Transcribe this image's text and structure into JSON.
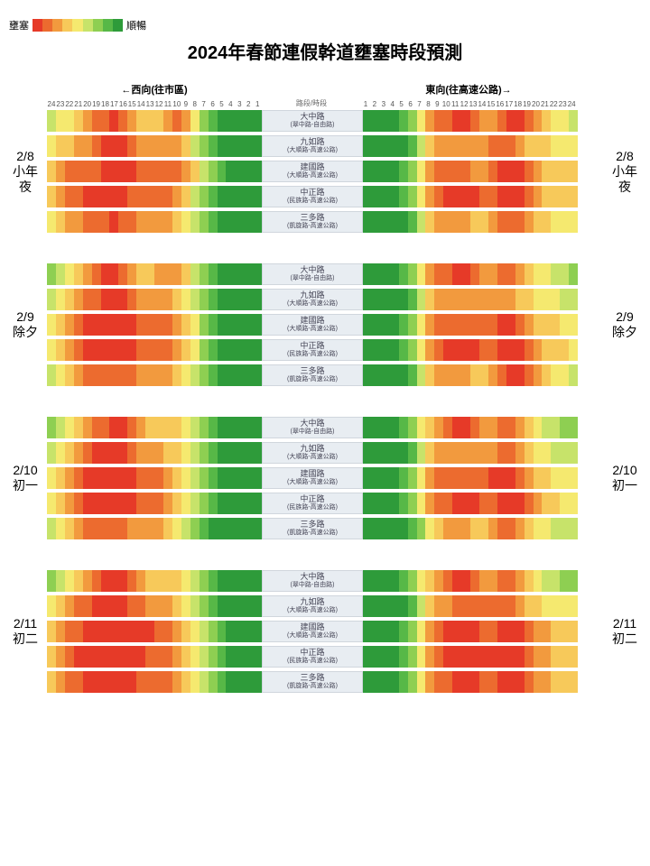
{
  "title": "2024年春節連假幹道壅塞時段預測",
  "legend": {
    "left": "壅塞",
    "right": "順暢"
  },
  "dir_left_label": "←西向(往市區)",
  "dir_right_label": "東向(往高速公路)→",
  "mid_header": "路段/時段",
  "hours_left": [
    "24",
    "23",
    "22",
    "21",
    "20",
    "19",
    "18",
    "17",
    "16",
    "15",
    "14",
    "13",
    "12",
    "11",
    "10",
    "9",
    "8",
    "7",
    "6",
    "5",
    "4",
    "3",
    "2",
    "1"
  ],
  "hours_right": [
    "1",
    "2",
    "3",
    "4",
    "5",
    "6",
    "7",
    "8",
    "9",
    "10",
    "11",
    "12",
    "13",
    "14",
    "15",
    "16",
    "17",
    "18",
    "19",
    "20",
    "21",
    "22",
    "23",
    "24"
  ],
  "colors": {
    "0": "#2e9b3a",
    "1": "#57b847",
    "2": "#8ecf52",
    "3": "#c7e36a",
    "4": "#f5e96f",
    "5": "#f7c95a",
    "6": "#f29a3e",
    "7": "#ec6b2f",
    "8": "#e63a28"
  },
  "legend_swatch": [
    "8",
    "7",
    "6",
    "5",
    "4",
    "3",
    "2",
    "1",
    "0"
  ],
  "roads": [
    {
      "name": "大中路",
      "seg": "(翠中路-自由路)"
    },
    {
      "name": "九如路",
      "seg": "(大順路-高速公路)"
    },
    {
      "name": "建國路",
      "seg": "(大順路-高速公路)"
    },
    {
      "name": "中正路",
      "seg": "(民族路-高速公路)"
    },
    {
      "name": "三多路",
      "seg": "(凱旋路-高速公路)"
    }
  ],
  "days": [
    {
      "date": "2/8",
      "name": "小年夜",
      "rows": [
        {
          "L": [
            3,
            4,
            4,
            5,
            6,
            7,
            7,
            8,
            7,
            6,
            5,
            5,
            5,
            6,
            7,
            6,
            4,
            2,
            1,
            0,
            0,
            0,
            0,
            0
          ],
          "R": [
            0,
            0,
            0,
            0,
            1,
            2,
            4,
            6,
            7,
            7,
            8,
            8,
            7,
            6,
            6,
            7,
            8,
            8,
            7,
            6,
            5,
            4,
            4,
            3
          ]
        },
        {
          "L": [
            4,
            5,
            5,
            6,
            6,
            7,
            8,
            8,
            8,
            7,
            6,
            6,
            6,
            6,
            6,
            5,
            3,
            2,
            1,
            0,
            0,
            0,
            0,
            0
          ],
          "R": [
            0,
            0,
            0,
            0,
            0,
            1,
            3,
            5,
            6,
            6,
            6,
            6,
            6,
            6,
            7,
            7,
            7,
            6,
            5,
            5,
            5,
            4,
            4,
            4
          ]
        },
        {
          "L": [
            5,
            6,
            7,
            7,
            7,
            7,
            8,
            8,
            8,
            8,
            7,
            7,
            7,
            7,
            7,
            6,
            5,
            3,
            2,
            1,
            0,
            0,
            0,
            0
          ],
          "R": [
            0,
            0,
            0,
            0,
            1,
            2,
            4,
            6,
            7,
            7,
            7,
            7,
            6,
            6,
            7,
            8,
            8,
            8,
            7,
            6,
            5,
            5,
            5,
            5
          ]
        },
        {
          "L": [
            5,
            6,
            7,
            7,
            8,
            8,
            8,
            8,
            8,
            7,
            7,
            7,
            7,
            7,
            6,
            5,
            3,
            2,
            1,
            0,
            0,
            0,
            0,
            0
          ],
          "R": [
            0,
            0,
            0,
            0,
            1,
            2,
            4,
            6,
            7,
            8,
            8,
            8,
            8,
            7,
            7,
            8,
            8,
            8,
            7,
            6,
            5,
            5,
            5,
            5
          ]
        },
        {
          "L": [
            4,
            5,
            6,
            6,
            7,
            7,
            7,
            8,
            7,
            7,
            6,
            6,
            6,
            6,
            5,
            4,
            3,
            2,
            1,
            0,
            0,
            0,
            0,
            0
          ],
          "R": [
            0,
            0,
            0,
            0,
            0,
            1,
            3,
            5,
            6,
            6,
            6,
            6,
            5,
            5,
            6,
            7,
            7,
            7,
            6,
            5,
            5,
            4,
            4,
            4
          ]
        }
      ]
    },
    {
      "date": "2/9",
      "name": "除夕",
      "rows": [
        {
          "L": [
            2,
            3,
            4,
            5,
            6,
            7,
            8,
            8,
            7,
            6,
            5,
            5,
            6,
            6,
            6,
            5,
            3,
            2,
            1,
            0,
            0,
            0,
            0,
            0
          ],
          "R": [
            0,
            0,
            0,
            0,
            1,
            2,
            4,
            6,
            7,
            7,
            8,
            8,
            7,
            6,
            6,
            7,
            7,
            6,
            5,
            4,
            4,
            3,
            3,
            2
          ]
        },
        {
          "L": [
            3,
            4,
            5,
            6,
            7,
            7,
            8,
            8,
            8,
            7,
            6,
            6,
            6,
            6,
            5,
            4,
            3,
            2,
            1,
            0,
            0,
            0,
            0,
            0
          ],
          "R": [
            0,
            0,
            0,
            0,
            0,
            1,
            3,
            5,
            6,
            6,
            6,
            6,
            6,
            6,
            6,
            6,
            6,
            5,
            5,
            4,
            4,
            4,
            3,
            3
          ]
        },
        {
          "L": [
            4,
            5,
            6,
            7,
            8,
            8,
            8,
            8,
            8,
            8,
            7,
            7,
            7,
            7,
            6,
            5,
            4,
            2,
            1,
            0,
            0,
            0,
            0,
            0
          ],
          "R": [
            0,
            0,
            0,
            0,
            1,
            2,
            4,
            6,
            7,
            7,
            7,
            7,
            7,
            7,
            7,
            8,
            8,
            7,
            6,
            5,
            5,
            5,
            4,
            4
          ]
        },
        {
          "L": [
            4,
            5,
            6,
            7,
            8,
            8,
            8,
            8,
            8,
            8,
            7,
            7,
            7,
            7,
            6,
            5,
            4,
            2,
            1,
            0,
            0,
            0,
            0,
            0
          ],
          "R": [
            0,
            0,
            0,
            0,
            1,
            2,
            4,
            6,
            7,
            8,
            8,
            8,
            8,
            7,
            7,
            8,
            8,
            8,
            7,
            6,
            5,
            5,
            5,
            4
          ]
        },
        {
          "L": [
            3,
            4,
            5,
            6,
            7,
            7,
            7,
            7,
            7,
            7,
            6,
            6,
            6,
            6,
            5,
            4,
            3,
            2,
            1,
            0,
            0,
            0,
            0,
            0
          ],
          "R": [
            0,
            0,
            0,
            0,
            0,
            1,
            3,
            5,
            6,
            6,
            6,
            6,
            5,
            5,
            6,
            7,
            8,
            8,
            7,
            6,
            5,
            4,
            4,
            3
          ]
        }
      ]
    },
    {
      "date": "2/10",
      "name": "初一",
      "rows": [
        {
          "L": [
            2,
            3,
            4,
            5,
            6,
            7,
            7,
            8,
            8,
            7,
            6,
            5,
            5,
            5,
            5,
            4,
            3,
            2,
            1,
            0,
            0,
            0,
            0,
            0
          ],
          "R": [
            0,
            0,
            0,
            0,
            1,
            2,
            4,
            5,
            6,
            7,
            8,
            8,
            7,
            6,
            6,
            7,
            7,
            6,
            5,
            4,
            3,
            3,
            2,
            2
          ]
        },
        {
          "L": [
            3,
            4,
            5,
            6,
            7,
            8,
            8,
            8,
            8,
            7,
            6,
            6,
            6,
            5,
            5,
            4,
            3,
            2,
            1,
            0,
            0,
            0,
            0,
            0
          ],
          "R": [
            0,
            0,
            0,
            0,
            0,
            1,
            3,
            5,
            6,
            6,
            6,
            6,
            6,
            6,
            6,
            7,
            7,
            6,
            5,
            4,
            4,
            3,
            3,
            3
          ]
        },
        {
          "L": [
            4,
            5,
            6,
            7,
            8,
            8,
            8,
            8,
            8,
            8,
            7,
            7,
            7,
            6,
            5,
            4,
            3,
            2,
            1,
            0,
            0,
            0,
            0,
            0
          ],
          "R": [
            0,
            0,
            0,
            0,
            1,
            2,
            4,
            6,
            7,
            7,
            7,
            7,
            7,
            7,
            8,
            8,
            8,
            7,
            6,
            5,
            5,
            4,
            4,
            4
          ]
        },
        {
          "L": [
            4,
            5,
            6,
            7,
            8,
            8,
            8,
            8,
            8,
            8,
            7,
            7,
            7,
            6,
            5,
            4,
            3,
            2,
            1,
            0,
            0,
            0,
            0,
            0
          ],
          "R": [
            0,
            0,
            0,
            0,
            1,
            2,
            4,
            6,
            7,
            7,
            8,
            8,
            8,
            7,
            7,
            8,
            8,
            8,
            7,
            6,
            5,
            5,
            4,
            4
          ]
        },
        {
          "L": [
            3,
            4,
            5,
            6,
            7,
            7,
            7,
            7,
            7,
            6,
            6,
            6,
            6,
            5,
            4,
            3,
            2,
            1,
            0,
            0,
            0,
            0,
            0,
            0
          ],
          "R": [
            0,
            0,
            0,
            0,
            0,
            1,
            2,
            4,
            5,
            6,
            6,
            6,
            5,
            5,
            6,
            7,
            7,
            6,
            5,
            4,
            4,
            3,
            3,
            3
          ]
        }
      ]
    },
    {
      "date": "2/11",
      "name": "初二",
      "rows": [
        {
          "L": [
            2,
            3,
            4,
            5,
            6,
            7,
            8,
            8,
            8,
            7,
            6,
            5,
            5,
            5,
            5,
            4,
            3,
            2,
            1,
            0,
            0,
            0,
            0,
            0
          ],
          "R": [
            0,
            0,
            0,
            0,
            1,
            2,
            4,
            5,
            6,
            7,
            8,
            8,
            7,
            6,
            6,
            7,
            7,
            6,
            5,
            4,
            3,
            3,
            2,
            2
          ]
        },
        {
          "L": [
            4,
            5,
            6,
            7,
            7,
            8,
            8,
            8,
            8,
            7,
            7,
            6,
            6,
            6,
            5,
            4,
            3,
            2,
            1,
            0,
            0,
            0,
            0,
            0
          ],
          "R": [
            0,
            0,
            0,
            0,
            0,
            1,
            3,
            5,
            6,
            6,
            7,
            7,
            7,
            7,
            7,
            7,
            7,
            6,
            5,
            5,
            4,
            4,
            4,
            4
          ]
        },
        {
          "L": [
            5,
            6,
            7,
            7,
            8,
            8,
            8,
            8,
            8,
            8,
            8,
            8,
            7,
            7,
            6,
            5,
            4,
            3,
            2,
            1,
            0,
            0,
            0,
            0
          ],
          "R": [
            0,
            0,
            0,
            0,
            1,
            2,
            4,
            6,
            7,
            8,
            8,
            8,
            8,
            7,
            7,
            8,
            8,
            8,
            7,
            6,
            6,
            5,
            5,
            5
          ]
        },
        {
          "L": [
            5,
            6,
            7,
            8,
            8,
            8,
            8,
            8,
            8,
            8,
            8,
            7,
            7,
            7,
            6,
            5,
            4,
            3,
            2,
            1,
            0,
            0,
            0,
            0
          ],
          "R": [
            0,
            0,
            0,
            0,
            1,
            2,
            4,
            6,
            7,
            8,
            8,
            8,
            8,
            8,
            8,
            8,
            8,
            8,
            7,
            6,
            6,
            5,
            5,
            5
          ]
        },
        {
          "L": [
            5,
            6,
            7,
            7,
            8,
            8,
            8,
            8,
            8,
            8,
            7,
            7,
            7,
            7,
            6,
            5,
            4,
            3,
            2,
            1,
            0,
            0,
            0,
            0
          ],
          "R": [
            0,
            0,
            0,
            0,
            1,
            2,
            4,
            6,
            7,
            7,
            8,
            8,
            8,
            7,
            7,
            8,
            8,
            8,
            7,
            6,
            6,
            5,
            5,
            5
          ]
        }
      ]
    }
  ]
}
